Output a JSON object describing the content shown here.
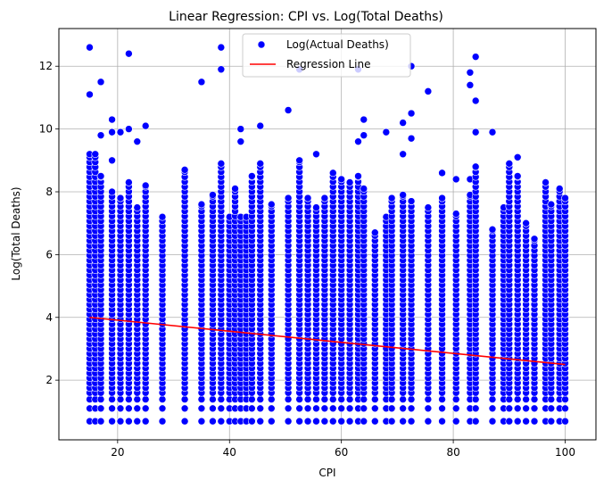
{
  "chart_data": {
    "type": "scatter",
    "title": "Linear Regression: CPI vs. Log(Total Deaths)",
    "xlabel": "CPI",
    "ylabel": "Log(Total Deaths)",
    "xlim": [
      9.5,
      105.5
    ],
    "ylim": [
      0.1,
      13.2
    ],
    "xticks": [
      20,
      40,
      60,
      80,
      100
    ],
    "yticks": [
      2,
      4,
      6,
      8,
      10,
      12
    ],
    "grid": true,
    "legend": {
      "placement": "top-center",
      "entries": [
        {
          "label": "Log(Actual Deaths)",
          "marker": "circle",
          "color": "#0000ff"
        },
        {
          "label": "Regression Line",
          "marker": "line",
          "color": "#ff0000"
        }
      ]
    },
    "series": [
      {
        "name": "Log(Actual Deaths)",
        "kind": "scatter",
        "color": "#0000ff",
        "columns": [
          {
            "x": 15,
            "ymin": 0.7,
            "ymax": 9.2,
            "outliers": [
              11.1,
              12.6
            ]
          },
          {
            "x": 16,
            "ymin": 0.7,
            "ymax": 9.2,
            "outliers": []
          },
          {
            "x": 17,
            "ymin": 0.7,
            "ymax": 8.5,
            "outliers": [
              9.8,
              11.5
            ]
          },
          {
            "x": 19,
            "ymin": 0.7,
            "ymax": 8.0,
            "outliers": [
              9.0,
              9.9,
              10.3
            ]
          },
          {
            "x": 20.5,
            "ymin": 0.7,
            "ymax": 7.8,
            "outliers": [
              9.9
            ]
          },
          {
            "x": 22,
            "ymin": 0.7,
            "ymax": 8.3,
            "outliers": [
              10.0,
              12.4
            ]
          },
          {
            "x": 23.5,
            "ymin": 0.7,
            "ymax": 7.5,
            "outliers": [
              9.6
            ]
          },
          {
            "x": 25,
            "ymin": 0.7,
            "ymax": 8.2,
            "outliers": [
              10.1
            ]
          },
          {
            "x": 28,
            "ymin": 0.7,
            "ymax": 7.2,
            "outliers": []
          },
          {
            "x": 32,
            "ymin": 0.7,
            "ymax": 8.7,
            "outliers": []
          },
          {
            "x": 35,
            "ymin": 0.7,
            "ymax": 7.6,
            "outliers": [
              11.5
            ]
          },
          {
            "x": 37,
            "ymin": 0.7,
            "ymax": 7.9,
            "outliers": []
          },
          {
            "x": 38.5,
            "ymin": 0.7,
            "ymax": 8.9,
            "outliers": [
              11.9,
              12.6
            ]
          },
          {
            "x": 40,
            "ymin": 0.7,
            "ymax": 7.2,
            "outliers": []
          },
          {
            "x": 41,
            "ymin": 0.7,
            "ymax": 8.1,
            "outliers": []
          },
          {
            "x": 42,
            "ymin": 0.7,
            "ymax": 7.2,
            "outliers": [
              9.6,
              10.0
            ]
          },
          {
            "x": 43,
            "ymin": 0.7,
            "ymax": 7.2,
            "outliers": []
          },
          {
            "x": 44,
            "ymin": 0.7,
            "ymax": 8.5,
            "outliers": []
          },
          {
            "x": 45.5,
            "ymin": 0.7,
            "ymax": 8.9,
            "outliers": [
              10.1
            ]
          },
          {
            "x": 47.5,
            "ymin": 0.7,
            "ymax": 7.6,
            "outliers": []
          },
          {
            "x": 50.5,
            "ymin": 0.7,
            "ymax": 7.8,
            "outliers": [
              10.6
            ]
          },
          {
            "x": 52.5,
            "ymin": 0.7,
            "ymax": 9.0,
            "outliers": [
              11.9
            ]
          },
          {
            "x": 54,
            "ymin": 0.7,
            "ymax": 7.8,
            "outliers": []
          },
          {
            "x": 55.5,
            "ymin": 0.7,
            "ymax": 7.5,
            "outliers": [
              9.2
            ]
          },
          {
            "x": 57,
            "ymin": 0.7,
            "ymax": 7.8,
            "outliers": []
          },
          {
            "x": 58.5,
            "ymin": 0.7,
            "ymax": 8.6,
            "outliers": []
          },
          {
            "x": 60,
            "ymin": 0.7,
            "ymax": 8.4,
            "outliers": []
          },
          {
            "x": 61.5,
            "ymin": 0.7,
            "ymax": 8.3,
            "outliers": []
          },
          {
            "x": 63,
            "ymin": 0.7,
            "ymax": 8.5,
            "outliers": [
              9.6,
              11.9
            ]
          },
          {
            "x": 64,
            "ymin": 0.7,
            "ymax": 8.1,
            "outliers": [
              9.8,
              10.3
            ]
          },
          {
            "x": 66,
            "ymin": 0.7,
            "ymax": 6.7,
            "outliers": []
          },
          {
            "x": 68,
            "ymin": 0.7,
            "ymax": 7.2,
            "outliers": [
              9.9
            ]
          },
          {
            "x": 69,
            "ymin": 0.7,
            "ymax": 7.8,
            "outliers": []
          },
          {
            "x": 71,
            "ymin": 0.7,
            "ymax": 7.9,
            "outliers": [
              9.2,
              10.2
            ]
          },
          {
            "x": 72.5,
            "ymin": 0.7,
            "ymax": 7.7,
            "outliers": [
              9.7,
              10.5,
              12.0
            ]
          },
          {
            "x": 75.5,
            "ymin": 0.7,
            "ymax": 7.5,
            "outliers": [
              11.2
            ]
          },
          {
            "x": 78,
            "ymin": 0.7,
            "ymax": 7.8,
            "outliers": [
              8.6
            ]
          },
          {
            "x": 80.5,
            "ymin": 0.7,
            "ymax": 7.3,
            "outliers": [
              8.4
            ]
          },
          {
            "x": 83,
            "ymin": 0.7,
            "ymax": 7.9,
            "outliers": [
              8.4,
              11.4,
              11.8
            ]
          },
          {
            "x": 84,
            "ymin": 0.7,
            "ymax": 8.8,
            "outliers": [
              9.9,
              10.9,
              12.3
            ]
          },
          {
            "x": 87,
            "ymin": 0.7,
            "ymax": 6.8,
            "outliers": [
              9.9
            ]
          },
          {
            "x": 89,
            "ymin": 0.7,
            "ymax": 7.5,
            "outliers": []
          },
          {
            "x": 90,
            "ymin": 0.7,
            "ymax": 8.9,
            "outliers": []
          },
          {
            "x": 91.5,
            "ymin": 0.7,
            "ymax": 8.5,
            "outliers": [
              9.1
            ]
          },
          {
            "x": 93,
            "ymin": 0.7,
            "ymax": 7.0,
            "outliers": []
          },
          {
            "x": 94.5,
            "ymin": 0.7,
            "ymax": 6.5,
            "outliers": []
          },
          {
            "x": 96.5,
            "ymin": 0.7,
            "ymax": 8.3,
            "outliers": []
          },
          {
            "x": 97.5,
            "ymin": 0.7,
            "ymax": 7.6,
            "outliers": []
          },
          {
            "x": 99,
            "ymin": 0.7,
            "ymax": 8.1,
            "outliers": []
          },
          {
            "x": 100,
            "ymin": 0.7,
            "ymax": 7.8,
            "outliers": []
          }
        ]
      },
      {
        "name": "Regression Line",
        "kind": "line",
        "color": "#ff0000",
        "x": [
          15,
          100
        ],
        "y": [
          4.0,
          2.5
        ]
      }
    ]
  }
}
